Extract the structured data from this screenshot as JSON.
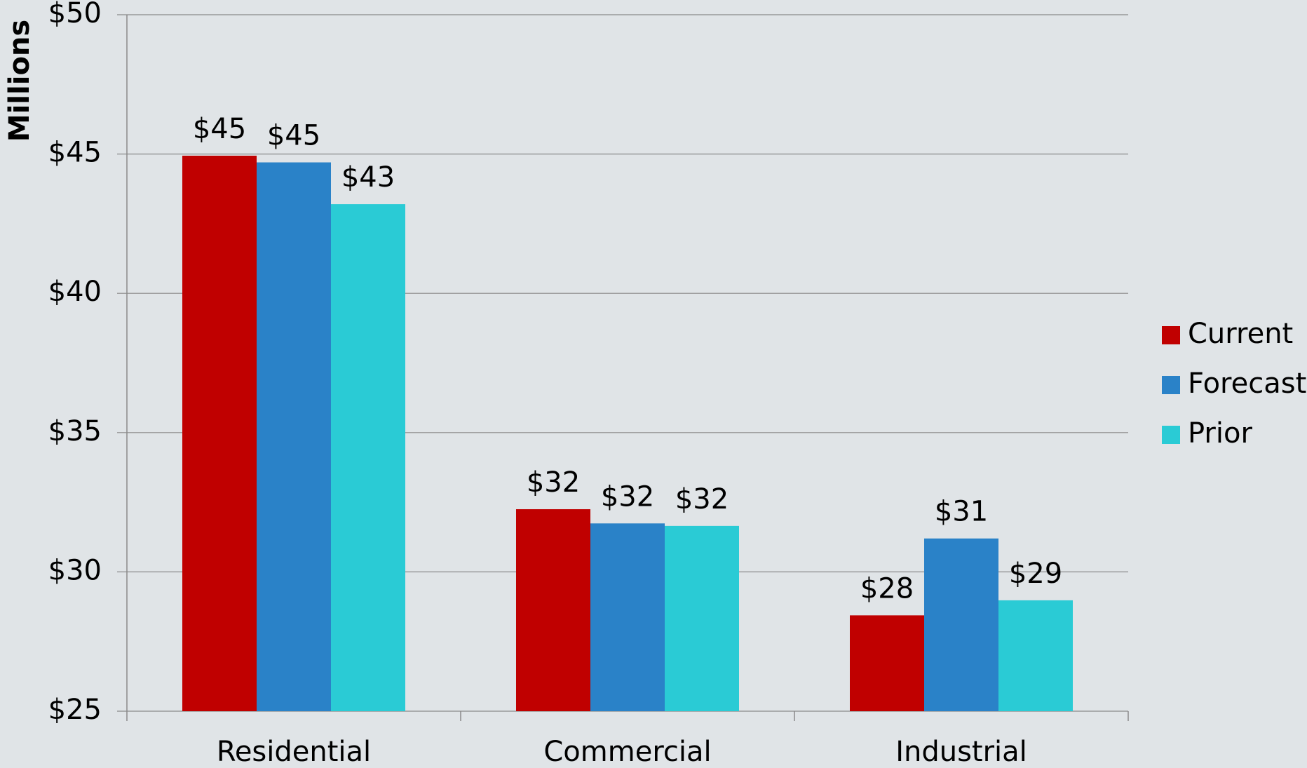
{
  "chart_data": {
    "type": "bar",
    "y_axis_label": "Millions",
    "categories": [
      "Residential",
      "Commercial",
      "Industrial"
    ],
    "series": [
      {
        "name": "Current",
        "color": "#c00000",
        "values": [
          44.94,
          32.25,
          28.44
        ],
        "value_labels": [
          "$45",
          "$32",
          "$28"
        ]
      },
      {
        "name": "Forecast",
        "color": "#2a82c8",
        "values": [
          44.7,
          31.74,
          31.2
        ],
        "value_labels": [
          "$45",
          "$32",
          "$31"
        ]
      },
      {
        "name": "Prior",
        "color": "#2acbd5",
        "values": [
          43.2,
          31.65,
          28.98
        ],
        "value_labels": [
          "$43",
          "$32",
          "$29"
        ]
      }
    ],
    "ylim": [
      25,
      50
    ],
    "yticks": [
      {
        "value": 25,
        "label": "$25"
      },
      {
        "value": 30,
        "label": "$30"
      },
      {
        "value": 35,
        "label": "$35"
      },
      {
        "value": 40,
        "label": "$40"
      },
      {
        "value": 45,
        "label": "$45"
      },
      {
        "value": 50,
        "label": "$50"
      }
    ],
    "grid": true,
    "legend": "right"
  }
}
